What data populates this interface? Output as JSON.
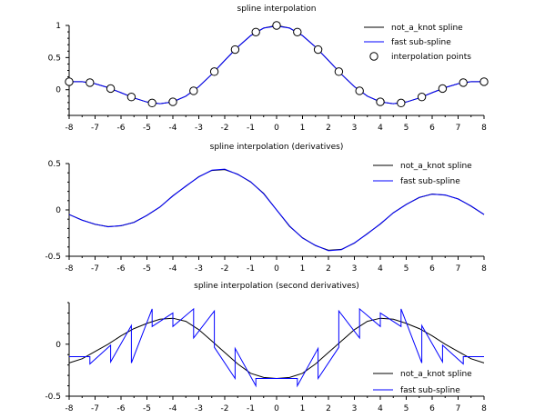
{
  "chart_data": [
    {
      "type": "line",
      "title": "spline interpolation",
      "xlabel": "",
      "ylabel": "",
      "xlim": [
        -8,
        8
      ],
      "ylim": [
        -0.4,
        1.0
      ],
      "x_ticks": [
        "-8",
        "-7",
        "-6",
        "-5",
        "-4",
        "-3",
        "-2",
        "-1",
        "0",
        "1",
        "2",
        "3",
        "4",
        "5",
        "6",
        "7",
        "8"
      ],
      "y_ticks": [
        {
          "v": 0,
          "label": "0"
        },
        {
          "v": 0.5,
          "label": "0.5"
        },
        {
          "v": 1,
          "label": "1"
        }
      ],
      "legend_position": "top-right",
      "series": [
        {
          "name": "not_a_knot spline",
          "color": "#000000",
          "style": "line",
          "x": [
            -8.0,
            -7.5,
            -7.0,
            -6.5,
            -6.0,
            -5.5,
            -5.0,
            -4.5,
            -4.0,
            -3.5,
            -3.0,
            -2.5,
            -2.0,
            -1.5,
            -1.0,
            -0.5,
            0.0,
            0.5,
            1.0,
            1.5,
            2.0,
            2.5,
            3.0,
            3.5,
            4.0,
            4.5,
            5.0,
            5.5,
            6.0,
            6.5,
            7.0,
            7.5,
            8.0
          ],
          "y": [
            0.124,
            0.125,
            0.094,
            0.033,
            -0.047,
            -0.128,
            -0.192,
            -0.217,
            -0.189,
            -0.1,
            0.047,
            0.24,
            0.455,
            0.665,
            0.841,
            0.959,
            1.0,
            0.959,
            0.841,
            0.665,
            0.455,
            0.24,
            0.047,
            -0.1,
            -0.189,
            -0.217,
            -0.192,
            -0.128,
            -0.047,
            0.033,
            0.094,
            0.125,
            0.124
          ]
        },
        {
          "name": "fast sub-spline",
          "color": "#0000ff",
          "style": "line",
          "x": [
            -8.0,
            -7.5,
            -7.0,
            -6.5,
            -6.0,
            -5.5,
            -5.0,
            -4.5,
            -4.0,
            -3.5,
            -3.0,
            -2.5,
            -2.0,
            -1.5,
            -1.0,
            -0.5,
            0.0,
            0.5,
            1.0,
            1.5,
            2.0,
            2.5,
            3.0,
            3.5,
            4.0,
            4.5,
            5.0,
            5.5,
            6.0,
            6.5,
            7.0,
            7.5,
            8.0
          ],
          "y": [
            0.124,
            0.125,
            0.094,
            0.033,
            -0.047,
            -0.128,
            -0.192,
            -0.217,
            -0.189,
            -0.1,
            0.047,
            0.24,
            0.455,
            0.665,
            0.841,
            0.959,
            0.99,
            0.959,
            0.841,
            0.665,
            0.455,
            0.24,
            0.047,
            -0.1,
            -0.189,
            -0.217,
            -0.192,
            -0.128,
            -0.047,
            0.033,
            0.094,
            0.125,
            0.124
          ]
        },
        {
          "name": "interpolation points",
          "color": "#000000",
          "style": "marker",
          "x": [
            -8.0,
            -7.2,
            -6.4,
            -5.6,
            -4.8,
            -4.0,
            -3.2,
            -2.4,
            -1.6,
            -0.8,
            0.0,
            0.8,
            1.6,
            2.4,
            3.2,
            4.0,
            4.8,
            5.6,
            6.4,
            7.2,
            8.0
          ],
          "y": [
            0.124,
            0.11,
            0.018,
            -0.113,
            -0.207,
            -0.189,
            -0.018,
            0.281,
            0.625,
            0.897,
            1.0,
            0.897,
            0.625,
            0.281,
            -0.018,
            -0.189,
            -0.207,
            -0.113,
            0.018,
            0.11,
            0.124
          ]
        }
      ]
    },
    {
      "type": "line",
      "title": "spline interpolation (derivatives)",
      "xlabel": "",
      "ylabel": "",
      "xlim": [
        -8,
        8
      ],
      "ylim": [
        -0.5,
        0.5
      ],
      "x_ticks": [
        "-8",
        "-7",
        "-6",
        "-5",
        "-4",
        "-3",
        "-2",
        "-1",
        "0",
        "1",
        "2",
        "3",
        "4",
        "5",
        "6",
        "7",
        "8"
      ],
      "y_ticks": [
        {
          "v": -0.5,
          "label": "-0.5"
        },
        {
          "v": 0,
          "label": "0"
        },
        {
          "v": 0.5,
          "label": "0.5"
        }
      ],
      "legend_position": "top-right",
      "series": [
        {
          "name": "not_a_knot spline",
          "color": "#000000",
          "style": "line",
          "x": [
            -8.0,
            -7.5,
            -7.0,
            -6.5,
            -6.0,
            -5.5,
            -5.0,
            -4.5,
            -4.0,
            -3.5,
            -3.0,
            -2.5,
            -2.0,
            -1.5,
            -1.0,
            -0.5,
            0.0,
            0.5,
            1.0,
            1.5,
            2.0,
            2.5,
            3.0,
            3.5,
            4.0,
            4.5,
            5.0,
            5.5,
            6.0,
            6.5,
            7.0,
            7.5,
            8.0
          ],
          "y": [
            -0.05,
            -0.11,
            -0.156,
            -0.18,
            -0.172,
            -0.133,
            -0.06,
            0.03,
            0.153,
            0.255,
            0.359,
            0.425,
            0.435,
            0.385,
            0.301,
            0.177,
            0.0,
            -0.177,
            -0.301,
            -0.385,
            -0.435,
            -0.425,
            -0.359,
            -0.255,
            -0.153,
            -0.03,
            0.06,
            0.133,
            0.172,
            0.16,
            0.12,
            0.04,
            -0.05
          ]
        },
        {
          "name": "fast sub-spline",
          "color": "#0000ff",
          "style": "line",
          "x": [
            -8.0,
            -7.5,
            -7.0,
            -6.5,
            -6.0,
            -5.5,
            -5.0,
            -4.5,
            -4.0,
            -3.5,
            -3.0,
            -2.5,
            -2.0,
            -1.5,
            -1.0,
            -0.5,
            0.0,
            0.5,
            1.0,
            1.5,
            2.0,
            2.5,
            3.0,
            3.5,
            4.0,
            4.5,
            5.0,
            5.5,
            6.0,
            6.5,
            7.0,
            7.5,
            8.0
          ],
          "y": [
            -0.05,
            -0.112,
            -0.154,
            -0.182,
            -0.17,
            -0.135,
            -0.058,
            0.032,
            0.15,
            0.258,
            0.356,
            0.428,
            0.44,
            0.382,
            0.304,
            0.174,
            0.0,
            -0.174,
            -0.304,
            -0.382,
            -0.44,
            -0.428,
            -0.356,
            -0.258,
            -0.15,
            -0.032,
            0.058,
            0.135,
            0.17,
            0.162,
            0.118,
            0.042,
            -0.05
          ]
        }
      ]
    },
    {
      "type": "line",
      "title": "spline interpolation (second derivatives)",
      "xlabel": "",
      "ylabel": "",
      "xlim": [
        -8,
        8
      ],
      "ylim": [
        -0.5,
        0.4
      ],
      "x_ticks": [
        "-8",
        "-7",
        "-6",
        "-5",
        "-4",
        "-3",
        "-2",
        "-1",
        "0",
        "1",
        "2",
        "3",
        "4",
        "5",
        "6",
        "7",
        "8"
      ],
      "y_ticks": [
        {
          "v": -0.5,
          "label": "-0.5"
        },
        {
          "v": 0,
          "label": "0"
        }
      ],
      "legend_position": "bottom-right",
      "series": [
        {
          "name": "not_a_knot spline",
          "color": "#000000",
          "style": "line",
          "x": [
            -8.0,
            -7.5,
            -7.0,
            -6.5,
            -6.0,
            -5.5,
            -5.0,
            -4.5,
            -4.0,
            -3.5,
            -3.0,
            -2.5,
            -2.0,
            -1.5,
            -1.0,
            -0.5,
            0.0,
            0.5,
            1.0,
            1.5,
            2.0,
            2.5,
            3.0,
            3.5,
            4.0,
            4.5,
            5.0,
            5.5,
            6.0,
            6.5,
            7.0,
            7.5,
            8.0
          ],
          "y": [
            -0.18,
            -0.14,
            -0.07,
            0.0,
            0.08,
            0.15,
            0.2,
            0.24,
            0.25,
            0.22,
            0.14,
            0.03,
            -0.08,
            -0.19,
            -0.28,
            -0.32,
            -0.33,
            -0.32,
            -0.28,
            -0.19,
            -0.08,
            0.03,
            0.14,
            0.22,
            0.25,
            0.24,
            0.2,
            0.15,
            0.08,
            0.0,
            -0.07,
            -0.14,
            -0.18
          ]
        },
        {
          "name": "fast sub-spline",
          "color": "#0000ff",
          "style": "line",
          "x": [
            -8.0,
            -7.2,
            -7.2,
            -6.4,
            -6.4,
            -5.6,
            -5.6,
            -4.8,
            -4.8,
            -4.0,
            -4.0,
            -3.2,
            -3.2,
            -2.4,
            -2.4,
            -1.6,
            -1.6,
            -0.8,
            -0.8,
            0.8,
            0.8,
            1.6,
            1.6,
            2.4,
            2.4,
            3.2,
            3.2,
            4.0,
            4.0,
            4.8,
            4.8,
            5.6,
            5.6,
            6.4,
            6.4,
            7.2,
            7.2,
            8.0
          ],
          "y": [
            -0.12,
            -0.12,
            -0.19,
            -0.01,
            -0.17,
            0.18,
            -0.18,
            0.34,
            0.17,
            0.3,
            0.17,
            0.34,
            0.06,
            0.32,
            -0.03,
            -0.33,
            -0.04,
            -0.4,
            -0.33,
            -0.33,
            -0.4,
            -0.04,
            -0.33,
            -0.03,
            0.32,
            0.06,
            0.34,
            0.17,
            0.3,
            0.17,
            0.34,
            -0.18,
            0.18,
            -0.17,
            -0.01,
            -0.19,
            -0.12,
            -0.12
          ]
        }
      ]
    }
  ]
}
